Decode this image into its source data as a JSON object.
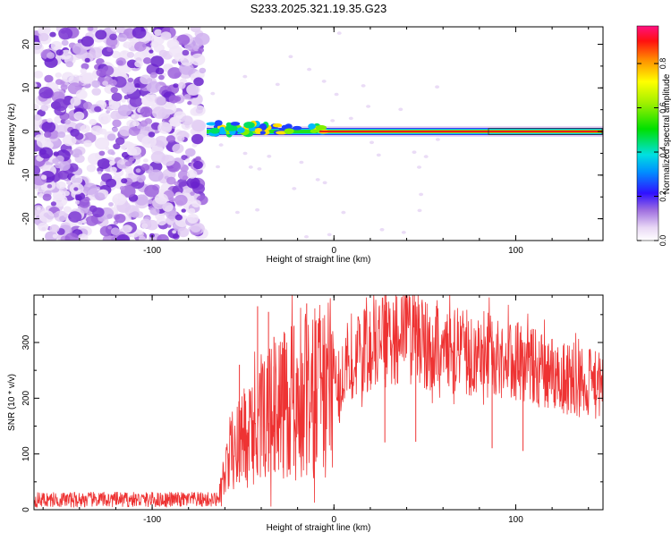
{
  "title": "S233.2025.321.19.35.G23",
  "chart_data": [
    {
      "type": "heatmap",
      "xlabel": "Height of straight line (km)",
      "ylabel": "Frequency (Hz)",
      "xlim": [
        -165,
        148
      ],
      "ylim": [
        -25,
        24
      ],
      "x_ticks": [
        -100,
        0,
        100
      ],
      "y_ticks": [
        -20,
        -10,
        0,
        10,
        20
      ],
      "x_tick_labels": [
        "-100",
        "0",
        "100"
      ],
      "y_tick_labels": [
        "-20",
        "-10",
        "0",
        "10",
        "20"
      ],
      "noise_region_x": [
        -165,
        -72
      ],
      "signal_start_x": -70,
      "signal_end_x": 148,
      "signal_frequency": 0,
      "colorbar": {
        "label": "Normalized spectral amplitude",
        "range": [
          0,
          0.97
        ],
        "ticks": [
          0.0,
          0.2,
          0.4,
          0.6,
          0.8
        ],
        "tick_labels": [
          "0.0",
          "0.2",
          "0.4",
          "0.6",
          "0.8"
        ]
      }
    },
    {
      "type": "line",
      "xlabel": "Height of straight line (km)",
      "ylabel": "SNR (10 * v/v)",
      "xlim": [
        -165,
        148
      ],
      "ylim": [
        0,
        385
      ],
      "x_ticks": [
        -100,
        0,
        100
      ],
      "y_ticks": [
        0,
        100,
        200,
        300
      ],
      "x_tick_labels": [
        "-100",
        "0",
        "100"
      ],
      "y_tick_labels": [
        "0",
        "100",
        "200",
        "300"
      ],
      "color": "#ee3333",
      "envelope": [
        {
          "x": -165,
          "y": 18
        },
        {
          "x": -64,
          "y": 18
        },
        {
          "x": -60,
          "y": 60
        },
        {
          "x": -55,
          "y": 110
        },
        {
          "x": -48,
          "y": 140
        },
        {
          "x": -40,
          "y": 160
        },
        {
          "x": -30,
          "y": 185
        },
        {
          "x": -20,
          "y": 200
        },
        {
          "x": -10,
          "y": 215
        },
        {
          "x": 0,
          "y": 220
        },
        {
          "x": 10,
          "y": 265
        },
        {
          "x": 20,
          "y": 290
        },
        {
          "x": 30,
          "y": 305
        },
        {
          "x": 40,
          "y": 310
        },
        {
          "x": 60,
          "y": 290
        },
        {
          "x": 80,
          "y": 280
        },
        {
          "x": 100,
          "y": 268
        },
        {
          "x": 120,
          "y": 245
        },
        {
          "x": 140,
          "y": 225
        },
        {
          "x": 148,
          "y": 220
        }
      ],
      "spikes": [
        {
          "x": -52,
          "y": 260
        },
        {
          "x": -42,
          "y": 365
        },
        {
          "x": -36,
          "y": 355
        },
        {
          "x": -33,
          "y": 310
        },
        {
          "x": -28,
          "y": 290
        },
        {
          "x": -22,
          "y": 330
        },
        {
          "x": -15,
          "y": 370
        },
        {
          "x": -10,
          "y": 330
        },
        {
          "x": 28,
          "y": 385
        },
        {
          "x": 45,
          "y": 350
        },
        {
          "x": 87,
          "y": 320
        },
        {
          "x": 104,
          "y": 300
        }
      ]
    }
  ]
}
